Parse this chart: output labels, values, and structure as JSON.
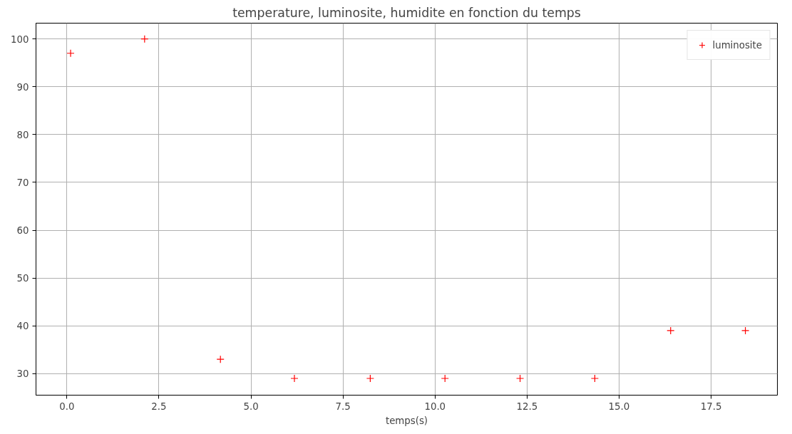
{
  "chart_data": {
    "type": "scatter",
    "title": "temperature, luminosite, humidite en fonction du temps",
    "xlabel": "temps(s)",
    "x": [
      0.1,
      2.11,
      4.17,
      6.18,
      8.24,
      10.27,
      12.31,
      14.34,
      16.4,
      18.43
    ],
    "series": [
      {
        "name": "luminosite",
        "color": "#ff0000",
        "values": [
          97,
          100,
          33,
          29,
          29,
          29,
          29,
          29,
          39,
          39
        ]
      }
    ],
    "xlim": [
      -0.84,
      19.3
    ],
    "ylim": [
      25.5,
      103.3
    ],
    "xticks": [
      {
        "value": 0,
        "label": "0.0"
      },
      {
        "value": 2.5,
        "label": "2.5"
      },
      {
        "value": 5,
        "label": "5.0"
      },
      {
        "value": 7.5,
        "label": "7.5"
      },
      {
        "value": 10,
        "label": "10.0"
      },
      {
        "value": 12.5,
        "label": "12.5"
      },
      {
        "value": 15,
        "label": "15.0"
      },
      {
        "value": 17.5,
        "label": "17.5"
      }
    ],
    "yticks": [
      30,
      40,
      50,
      60,
      70,
      80,
      90,
      100
    ],
    "grid": true,
    "legend": "top right",
    "marker": "cross"
  }
}
